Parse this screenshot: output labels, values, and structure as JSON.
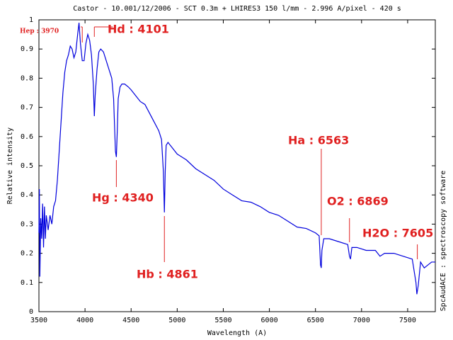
{
  "chart_data": {
    "type": "line",
    "title": "Castor - 10.001/12/2006 - SCT 0.3m + LHIRES3 150 l/mm - 2.996 A/pixel - 420 s",
    "x_label": "Wavelength (A)",
    "y_label": "Relative intensity",
    "side_note": "SpcAudACE : spectroscopy software",
    "xlim": [
      3500,
      7800
    ],
    "xticks": [
      3500,
      4000,
      4500,
      5000,
      5500,
      6000,
      6500,
      7000,
      7500
    ],
    "ylim": [
      0,
      1
    ],
    "yticks": [
      0,
      0.1,
      0.2,
      0.3,
      0.4,
      0.5,
      0.6,
      0.7,
      0.8,
      0.9,
      1
    ],
    "series": [
      {
        "color": "#0000dd",
        "x": [
          3500,
          3505,
          3510,
          3520,
          3530,
          3540,
          3550,
          3560,
          3570,
          3580,
          3600,
          3620,
          3640,
          3660,
          3680,
          3700,
          3720,
          3740,
          3760,
          3780,
          3800,
          3820,
          3840,
          3860,
          3880,
          3900,
          3920,
          3935,
          3950,
          3970,
          3990,
          4010,
          4030,
          4050,
          4070,
          4090,
          4101,
          4110,
          4130,
          4150,
          4170,
          4200,
          4230,
          4260,
          4290,
          4310,
          4330,
          4340,
          4350,
          4360,
          4380,
          4400,
          4430,
          4470,
          4500,
          4550,
          4600,
          4650,
          4700,
          4750,
          4800,
          4830,
          4850,
          4861,
          4870,
          4880,
          4900,
          4950,
          5000,
          5100,
          5200,
          5300,
          5400,
          5500,
          5600,
          5700,
          5800,
          5900,
          6000,
          6100,
          6200,
          6300,
          6400,
          6500,
          6540,
          6555,
          6563,
          6570,
          6590,
          6650,
          6750,
          6850,
          6869,
          6880,
          6895,
          6950,
          7050,
          7150,
          7200,
          7250,
          7350,
          7450,
          7550,
          7590,
          7600,
          7615,
          7640,
          7680,
          7720,
          7760,
          7800
        ],
        "values": [
          0.27,
          0.42,
          0.12,
          0.32,
          0.25,
          0.37,
          0.22,
          0.36,
          0.25,
          0.33,
          0.28,
          0.33,
          0.3,
          0.36,
          0.38,
          0.45,
          0.55,
          0.65,
          0.75,
          0.82,
          0.86,
          0.88,
          0.91,
          0.9,
          0.87,
          0.89,
          0.95,
          0.99,
          0.92,
          0.86,
          0.86,
          0.92,
          0.95,
          0.93,
          0.88,
          0.78,
          0.67,
          0.74,
          0.83,
          0.89,
          0.9,
          0.89,
          0.86,
          0.83,
          0.8,
          0.73,
          0.55,
          0.53,
          0.62,
          0.73,
          0.77,
          0.78,
          0.78,
          0.77,
          0.76,
          0.74,
          0.72,
          0.71,
          0.68,
          0.65,
          0.62,
          0.59,
          0.48,
          0.34,
          0.48,
          0.57,
          0.58,
          0.56,
          0.54,
          0.52,
          0.49,
          0.47,
          0.45,
          0.42,
          0.4,
          0.38,
          0.375,
          0.36,
          0.34,
          0.33,
          0.31,
          0.29,
          0.285,
          0.27,
          0.26,
          0.16,
          0.15,
          0.21,
          0.25,
          0.25,
          0.24,
          0.23,
          0.19,
          0.18,
          0.22,
          0.22,
          0.21,
          0.21,
          0.19,
          0.2,
          0.2,
          0.19,
          0.18,
          0.1,
          0.06,
          0.09,
          0.17,
          0.15,
          0.16,
          0.17,
          0.17
        ]
      }
    ],
    "annotations": [
      {
        "text": "Hep : 3970",
        "x": 3970
      },
      {
        "text": "Hd : 4101",
        "x": 4101
      },
      {
        "text": "Hg : 4340",
        "x": 4340
      },
      {
        "text": "Hb : 4861",
        "x": 4861
      },
      {
        "text": "Ha : 6563",
        "x": 6563
      },
      {
        "text": "O2 : 6869",
        "x": 6869
      },
      {
        "text": "H2O : 7605",
        "x": 7605
      }
    ]
  }
}
